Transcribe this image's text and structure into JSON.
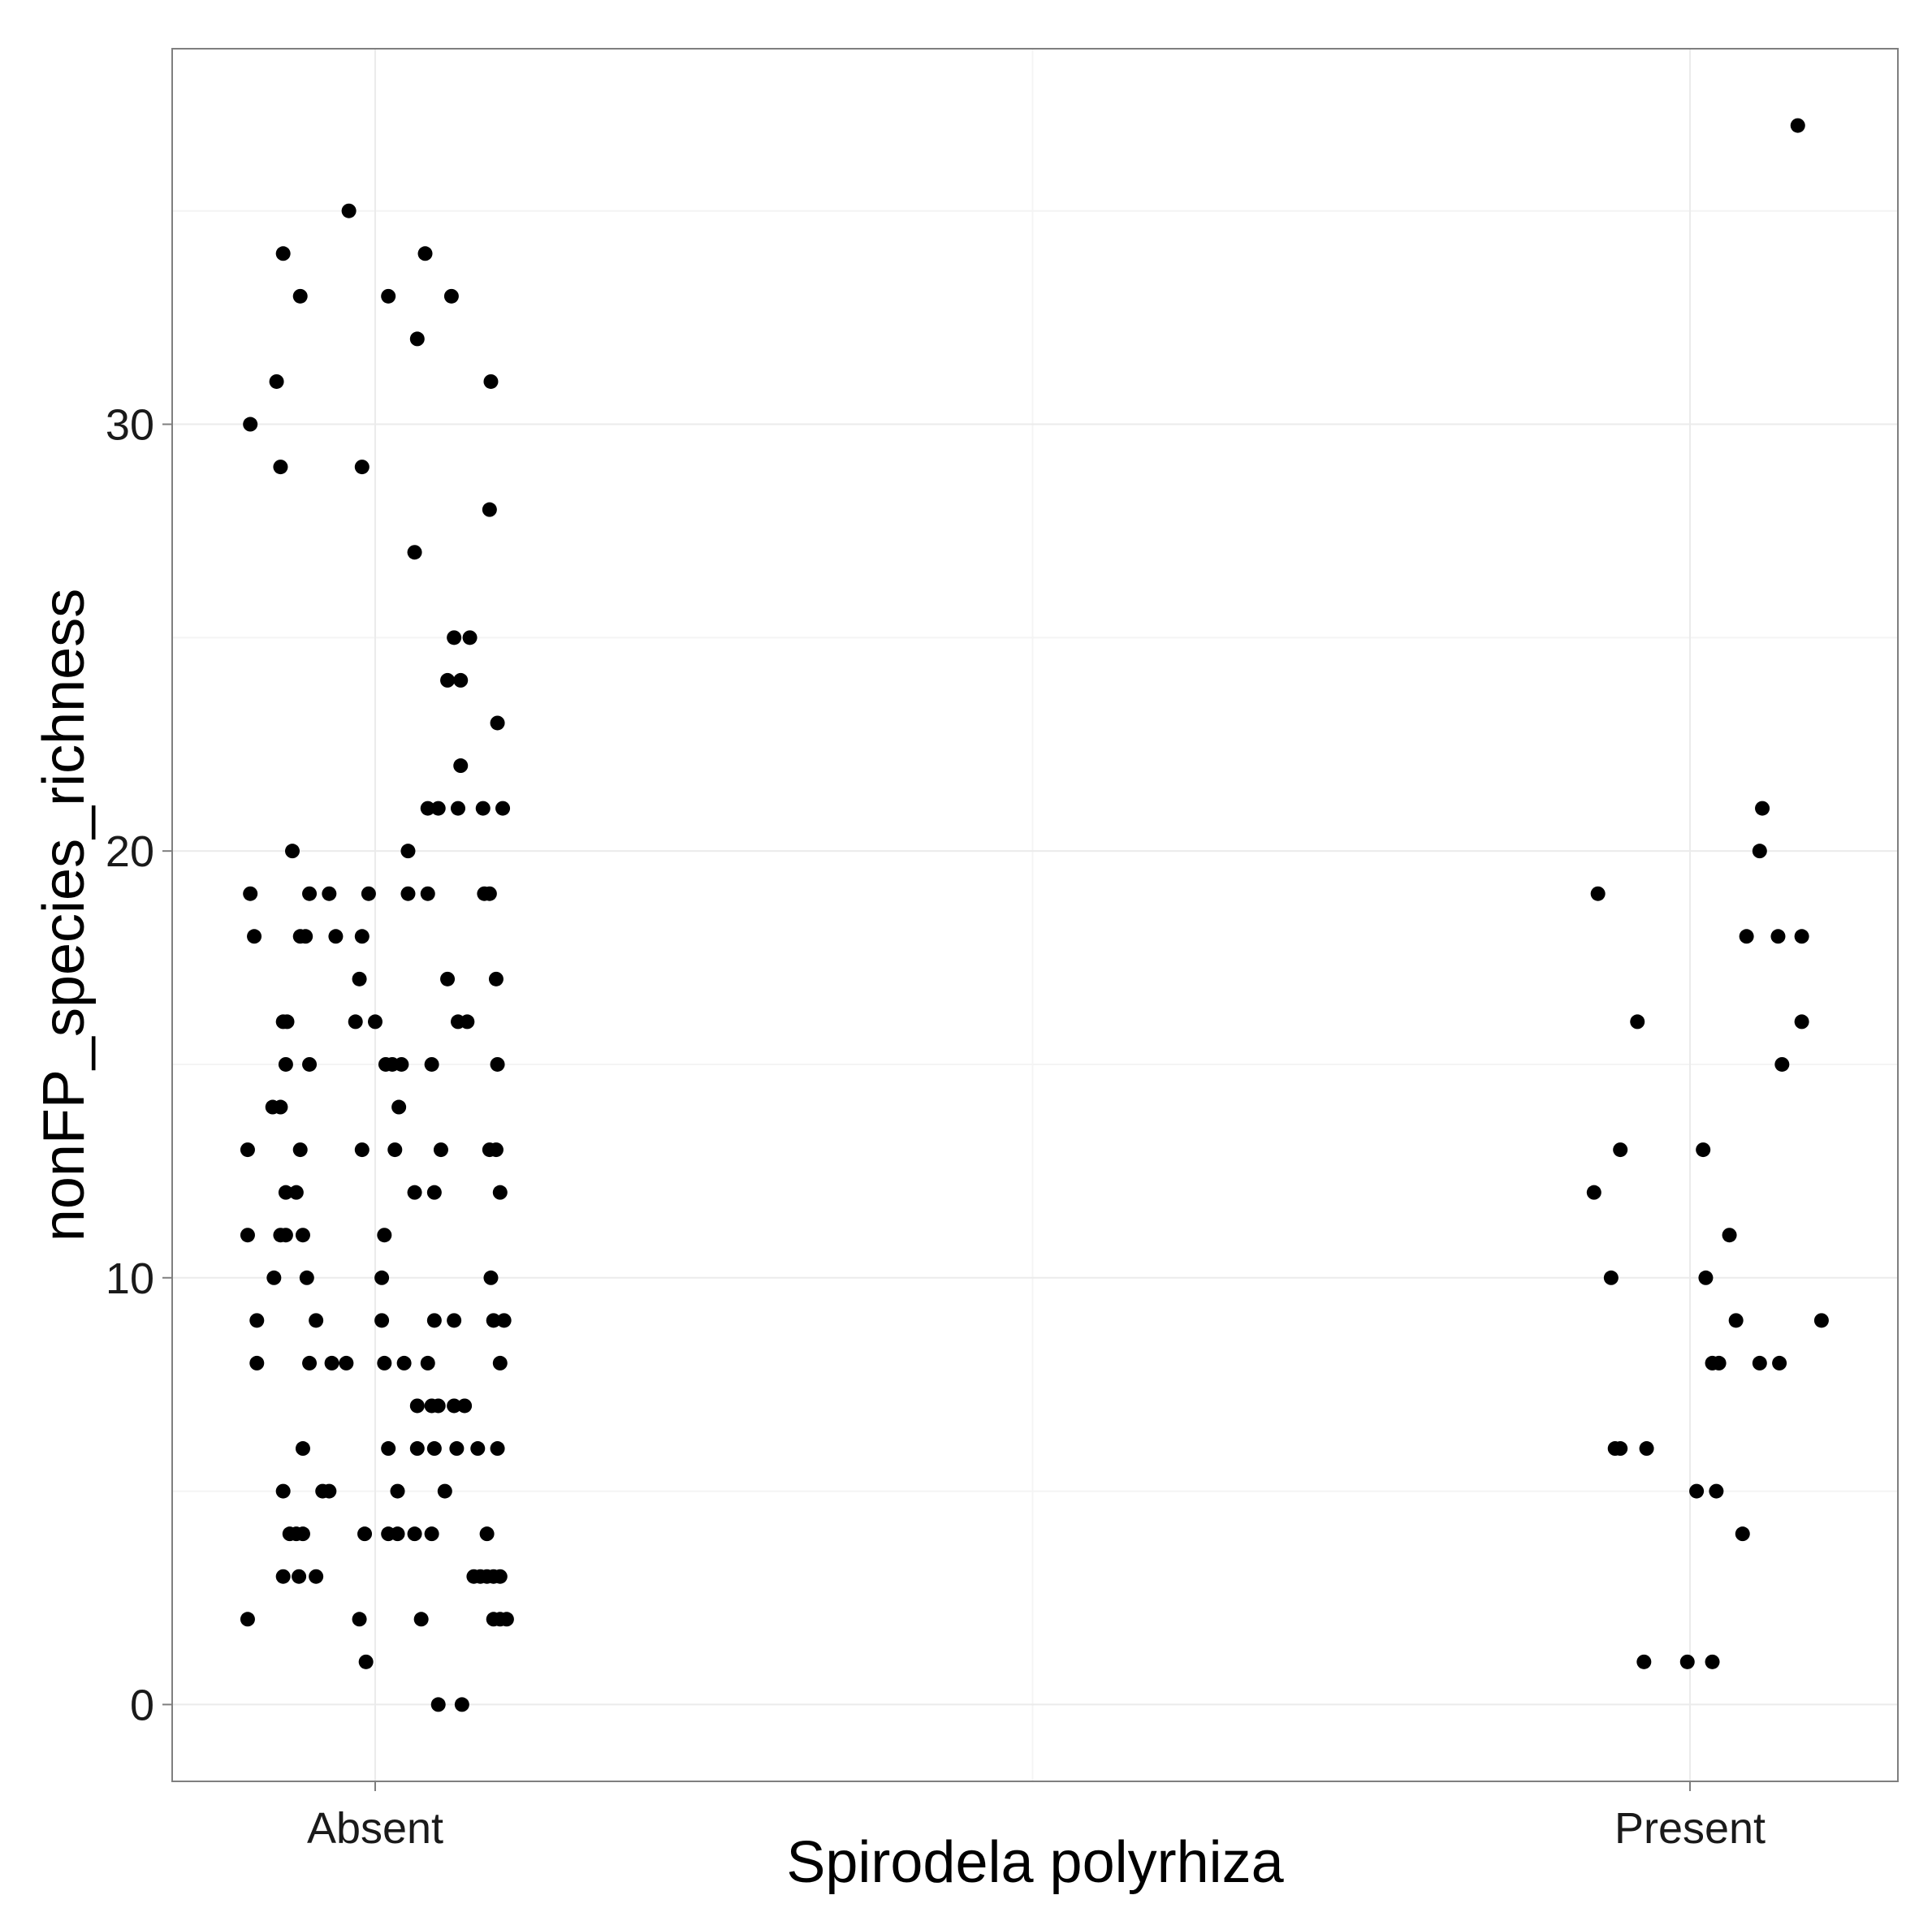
{
  "chart_data": {
    "type": "scatter",
    "title": "",
    "xlabel": "Spirodela polyrhiza",
    "ylabel": "nonFP_species_richness",
    "categories": [
      "Absent",
      "Present"
    ],
    "ylim": [
      -1.8,
      38.8
    ],
    "yticks": [
      0,
      10,
      20,
      30
    ],
    "grid": true,
    "legend": "none",
    "point_color": "#000000",
    "points": [
      {
        "x": -0.095,
        "y": 30
      },
      {
        "x": -0.075,
        "y": 31
      },
      {
        "x": -0.072,
        "y": 29
      },
      {
        "x": -0.07,
        "y": 34
      },
      {
        "x": -0.057,
        "y": 33
      },
      {
        "x": -0.02,
        "y": 35
      },
      {
        "x": -0.01,
        "y": 29
      },
      {
        "x": 0.01,
        "y": 33
      },
      {
        "x": 0.03,
        "y": 27
      },
      {
        "x": 0.032,
        "y": 32
      },
      {
        "x": 0.038,
        "y": 34
      },
      {
        "x": 0.058,
        "y": 33
      },
      {
        "x": 0.088,
        "y": 31
      },
      {
        "x": 0.087,
        "y": 28
      },
      {
        "x": 0.06,
        "y": 25
      },
      {
        "x": 0.072,
        "y": 25
      },
      {
        "x": 0.055,
        "y": 24
      },
      {
        "x": 0.065,
        "y": 24
      },
      {
        "x": 0.093,
        "y": 23
      },
      {
        "x": 0.065,
        "y": 22
      },
      {
        "x": 0.04,
        "y": 21
      },
      {
        "x": 0.048,
        "y": 21
      },
      {
        "x": 0.063,
        "y": 21
      },
      {
        "x": 0.082,
        "y": 21
      },
      {
        "x": 0.097,
        "y": 21
      },
      {
        "x": -0.063,
        "y": 20
      },
      {
        "x": 0.025,
        "y": 20
      },
      {
        "x": -0.095,
        "y": 19
      },
      {
        "x": -0.05,
        "y": 19
      },
      {
        "x": -0.035,
        "y": 19
      },
      {
        "x": -0.005,
        "y": 19
      },
      {
        "x": 0.025,
        "y": 19
      },
      {
        "x": 0.04,
        "y": 19
      },
      {
        "x": 0.083,
        "y": 19
      },
      {
        "x": 0.087,
        "y": 19
      },
      {
        "x": -0.092,
        "y": 18
      },
      {
        "x": -0.057,
        "y": 18
      },
      {
        "x": -0.053,
        "y": 18
      },
      {
        "x": -0.03,
        "y": 18
      },
      {
        "x": -0.01,
        "y": 18
      },
      {
        "x": -0.012,
        "y": 17
      },
      {
        "x": 0.055,
        "y": 17
      },
      {
        "x": 0.092,
        "y": 17
      },
      {
        "x": -0.07,
        "y": 16
      },
      {
        "x": -0.067,
        "y": 16
      },
      {
        "x": -0.015,
        "y": 16
      },
      {
        "x": 0.0,
        "y": 16
      },
      {
        "x": 0.063,
        "y": 16
      },
      {
        "x": 0.07,
        "y": 16
      },
      {
        "x": -0.068,
        "y": 15
      },
      {
        "x": -0.05,
        "y": 15
      },
      {
        "x": 0.008,
        "y": 15
      },
      {
        "x": 0.013,
        "y": 15
      },
      {
        "x": 0.02,
        "y": 15
      },
      {
        "x": 0.043,
        "y": 15
      },
      {
        "x": 0.093,
        "y": 15
      },
      {
        "x": -0.078,
        "y": 14
      },
      {
        "x": -0.072,
        "y": 14
      },
      {
        "x": 0.018,
        "y": 14
      },
      {
        "x": -0.097,
        "y": 13
      },
      {
        "x": -0.057,
        "y": 13
      },
      {
        "x": -0.01,
        "y": 13
      },
      {
        "x": 0.015,
        "y": 13
      },
      {
        "x": 0.05,
        "y": 13
      },
      {
        "x": 0.087,
        "y": 13
      },
      {
        "x": 0.092,
        "y": 13
      },
      {
        "x": -0.068,
        "y": 12
      },
      {
        "x": -0.06,
        "y": 12
      },
      {
        "x": 0.03,
        "y": 12
      },
      {
        "x": 0.045,
        "y": 12
      },
      {
        "x": 0.095,
        "y": 12
      },
      {
        "x": -0.097,
        "y": 11
      },
      {
        "x": -0.072,
        "y": 11
      },
      {
        "x": -0.068,
        "y": 11
      },
      {
        "x": -0.055,
        "y": 11
      },
      {
        "x": 0.007,
        "y": 11
      },
      {
        "x": -0.077,
        "y": 10
      },
      {
        "x": -0.052,
        "y": 10
      },
      {
        "x": 0.005,
        "y": 10
      },
      {
        "x": 0.088,
        "y": 10
      },
      {
        "x": -0.09,
        "y": 9
      },
      {
        "x": -0.045,
        "y": 9
      },
      {
        "x": 0.005,
        "y": 9
      },
      {
        "x": 0.045,
        "y": 9
      },
      {
        "x": 0.06,
        "y": 9
      },
      {
        "x": 0.09,
        "y": 9
      },
      {
        "x": 0.098,
        "y": 9
      },
      {
        "x": -0.09,
        "y": 8
      },
      {
        "x": -0.05,
        "y": 8
      },
      {
        "x": -0.033,
        "y": 8
      },
      {
        "x": -0.022,
        "y": 8
      },
      {
        "x": 0.007,
        "y": 8
      },
      {
        "x": 0.022,
        "y": 8
      },
      {
        "x": 0.04,
        "y": 8
      },
      {
        "x": 0.095,
        "y": 8
      },
      {
        "x": 0.032,
        "y": 7
      },
      {
        "x": 0.043,
        "y": 7
      },
      {
        "x": 0.048,
        "y": 7
      },
      {
        "x": 0.06,
        "y": 7
      },
      {
        "x": 0.068,
        "y": 7
      },
      {
        "x": -0.055,
        "y": 6
      },
      {
        "x": 0.01,
        "y": 6
      },
      {
        "x": 0.032,
        "y": 6
      },
      {
        "x": 0.045,
        "y": 6
      },
      {
        "x": 0.062,
        "y": 6
      },
      {
        "x": 0.078,
        "y": 6
      },
      {
        "x": 0.093,
        "y": 6
      },
      {
        "x": -0.07,
        "y": 5
      },
      {
        "x": -0.04,
        "y": 5
      },
      {
        "x": -0.035,
        "y": 5
      },
      {
        "x": 0.017,
        "y": 5
      },
      {
        "x": 0.053,
        "y": 5
      },
      {
        "x": -0.065,
        "y": 4
      },
      {
        "x": -0.06,
        "y": 4
      },
      {
        "x": -0.055,
        "y": 4
      },
      {
        "x": -0.008,
        "y": 4
      },
      {
        "x": 0.01,
        "y": 4
      },
      {
        "x": 0.017,
        "y": 4
      },
      {
        "x": 0.03,
        "y": 4
      },
      {
        "x": 0.043,
        "y": 4
      },
      {
        "x": 0.085,
        "y": 4
      },
      {
        "x": -0.07,
        "y": 3
      },
      {
        "x": -0.058,
        "y": 3
      },
      {
        "x": -0.045,
        "y": 3
      },
      {
        "x": 0.075,
        "y": 3
      },
      {
        "x": 0.08,
        "y": 3
      },
      {
        "x": 0.085,
        "y": 3
      },
      {
        "x": 0.09,
        "y": 3
      },
      {
        "x": 0.095,
        "y": 3
      },
      {
        "x": -0.097,
        "y": 2
      },
      {
        "x": -0.012,
        "y": 2
      },
      {
        "x": 0.035,
        "y": 2
      },
      {
        "x": 0.09,
        "y": 2
      },
      {
        "x": 0.095,
        "y": 2
      },
      {
        "x": 0.1,
        "y": 2
      },
      {
        "x": -0.007,
        "y": 1
      },
      {
        "x": 0.048,
        "y": 0
      },
      {
        "x": 0.066,
        "y": 0
      },
      {
        "x": 1.082,
        "y": 37
      },
      {
        "x": 1.055,
        "y": 21
      },
      {
        "x": 1.053,
        "y": 20
      },
      {
        "x": 0.93,
        "y": 19
      },
      {
        "x": 1.043,
        "y": 18
      },
      {
        "x": 1.067,
        "y": 18
      },
      {
        "x": 1.085,
        "y": 18
      },
      {
        "x": 0.96,
        "y": 16
      },
      {
        "x": 1.085,
        "y": 16
      },
      {
        "x": 1.07,
        "y": 15
      },
      {
        "x": 0.947,
        "y": 13
      },
      {
        "x": 1.01,
        "y": 13
      },
      {
        "x": 0.927,
        "y": 12
      },
      {
        "x": 1.03,
        "y": 11
      },
      {
        "x": 0.94,
        "y": 10
      },
      {
        "x": 1.012,
        "y": 10
      },
      {
        "x": 1.035,
        "y": 9
      },
      {
        "x": 1.1,
        "y": 9
      },
      {
        "x": 1.017,
        "y": 8
      },
      {
        "x": 1.022,
        "y": 8
      },
      {
        "x": 1.053,
        "y": 8
      },
      {
        "x": 1.068,
        "y": 8
      },
      {
        "x": 0.943,
        "y": 6
      },
      {
        "x": 0.947,
        "y": 6
      },
      {
        "x": 0.967,
        "y": 6
      },
      {
        "x": 1.005,
        "y": 5
      },
      {
        "x": 1.02,
        "y": 5
      },
      {
        "x": 1.04,
        "y": 4
      },
      {
        "x": 0.965,
        "y": 1
      },
      {
        "x": 0.998,
        "y": 1
      },
      {
        "x": 1.017,
        "y": 1
      }
    ]
  }
}
